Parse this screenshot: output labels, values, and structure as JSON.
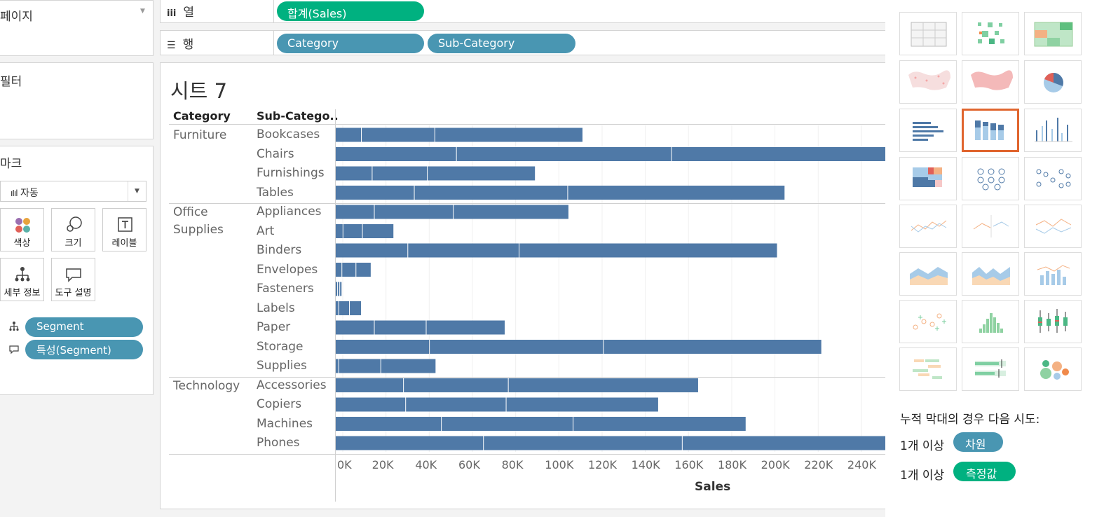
{
  "left_panel": {
    "pages_title": "페이지",
    "filters_title": "필터",
    "marks_title": "마크",
    "mark_type": "자동",
    "mark_buttons": {
      "color": "색상",
      "size": "크기",
      "label": "레이블",
      "detail": "세부 정보",
      "tooltip": "도구 설명"
    },
    "mark_pills": [
      "Segment",
      "특성(Segment)"
    ]
  },
  "shelves": {
    "columns": {
      "label": "열",
      "pills": [
        "합계(Sales)"
      ]
    },
    "rows": {
      "label": "행",
      "pills": [
        "Category",
        "Sub-Category"
      ]
    }
  },
  "view": {
    "title": "시트 7",
    "header_category": "Category",
    "header_subcategory": "Sub-Catego.."
  },
  "show_me": {
    "hint_text": "누적 막대의 경우 다음 시도:",
    "req_label": "1개 이상",
    "req_dims": "차원",
    "req_measures": "측정값",
    "selected_chart": "stacked-bar"
  },
  "colors": {
    "bar": "#4f79a7",
    "measure_pill": "#00b180",
    "dimension_pill": "#4996b2",
    "selected_outline": "#e0652e"
  },
  "chart_data": {
    "type": "bar",
    "orientation": "horizontal",
    "stacked": true,
    "xlabel": "Sales",
    "xlim": [
      0,
      255000
    ],
    "ticks": [
      "0K",
      "20K",
      "40K",
      "60K",
      "80K",
      "100K",
      "120K",
      "140K",
      "160K",
      "180K",
      "200K",
      "220K",
      "240K"
    ],
    "groups": [
      {
        "category": "Furniture",
        "subcategories": [
          {
            "name": "Bookcases",
            "segments": [
              12000,
              34000,
              68500
            ]
          },
          {
            "name": "Chairs",
            "segments": [
              56000,
              99500,
              100000
            ]
          },
          {
            "name": "Furnishings",
            "segments": [
              17000,
              25500,
              50000
            ]
          },
          {
            "name": "Tables",
            "segments": [
              36500,
              71000,
              100500
            ]
          }
        ]
      },
      {
        "category": "Office\nSupplies",
        "subcategories": [
          {
            "name": "Appliances",
            "segments": [
              18000,
              36500,
              53500
            ]
          },
          {
            "name": "Art",
            "segments": [
              3500,
              9000,
              14500
            ]
          },
          {
            "name": "Binders",
            "segments": [
              33500,
              51500,
              119500
            ]
          },
          {
            "name": "Envelopes",
            "segments": [
              3000,
              6500,
              7000
            ]
          },
          {
            "name": "Fasteners",
            "segments": [
              1000,
              1000,
              1000
            ]
          },
          {
            "name": "Labels",
            "segments": [
              1500,
              5000,
              5500
            ]
          },
          {
            "name": "Paper",
            "segments": [
              18000,
              24000,
              36500
            ]
          },
          {
            "name": "Storage",
            "segments": [
              43500,
              80500,
              101000
            ]
          },
          {
            "name": "Supplies",
            "segments": [
              1500,
              19500,
              25500
            ]
          }
        ]
      },
      {
        "category": "Technology",
        "subcategories": [
          {
            "name": "Accessories",
            "segments": [
              31500,
              48500,
              88000
            ]
          },
          {
            "name": "Copiers",
            "segments": [
              32500,
              46500,
              70500
            ]
          },
          {
            "name": "Machines",
            "segments": [
              49000,
              61000,
              80000
            ]
          },
          {
            "name": "Phones",
            "segments": [
              68500,
              92000,
              95500
            ]
          }
        ]
      }
    ]
  }
}
